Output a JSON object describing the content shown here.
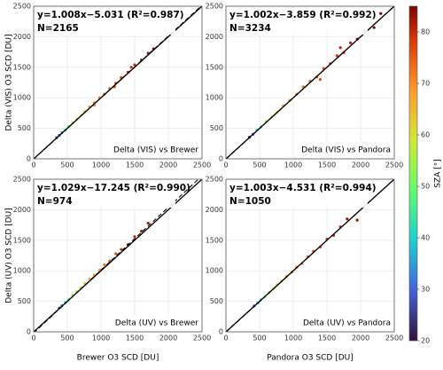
{
  "chart_data": [
    {
      "type": "scatter",
      "annotation": "y=1.008x−5.031 (R²=0.987)",
      "count_label": "N=2165",
      "panel_label": "Delta (VIS) vs Brewer",
      "ylabel": "Delta (VIS) O3 SCD [DU]",
      "fit": {
        "slope": 1.008,
        "intercept": -5.031
      },
      "x": [
        340,
        380,
        420,
        470,
        520,
        580,
        640,
        700,
        760,
        830,
        900,
        980,
        1050,
        1130,
        1220,
        1300,
        1400,
        1500,
        1600,
        1700,
        1780,
        1200,
        900,
        1450
      ],
      "values": [
        345,
        385,
        430,
        470,
        530,
        590,
        650,
        710,
        770,
        850,
        920,
        1000,
        1060,
        1150,
        1240,
        1330,
        1420,
        1540,
        1620,
        1730,
        1800,
        1180,
        880,
        1500
      ],
      "c": [
        24,
        30,
        36,
        42,
        48,
        54,
        58,
        62,
        65,
        68,
        70,
        72,
        74,
        75,
        77,
        78,
        79,
        80,
        81,
        82,
        83,
        76,
        71,
        80
      ],
      "xlim": [
        0,
        2500
      ],
      "ylim": [
        0,
        2500
      ],
      "xticks": [
        0,
        500,
        1000,
        1500,
        2000,
        2500
      ],
      "yticks": [
        0,
        500,
        1000,
        1500,
        2000,
        2500
      ],
      "grid": true
    },
    {
      "type": "scatter",
      "annotation": "y=1.002x−3.859 (R²=0.992)",
      "count_label": "N=3234",
      "panel_label": "Delta (VIS) vs Pandora",
      "fit": {
        "slope": 1.002,
        "intercept": -3.859
      },
      "x": [
        350,
        400,
        460,
        520,
        600,
        680,
        760,
        850,
        950,
        1050,
        1150,
        1250,
        1350,
        1450,
        1550,
        1650,
        1750,
        1850,
        1950,
        2050,
        2200,
        2300,
        1400,
        1700
      ],
      "values": [
        355,
        400,
        470,
        520,
        610,
        690,
        760,
        870,
        960,
        1060,
        1180,
        1270,
        1340,
        1480,
        1560,
        1690,
        1740,
        1900,
        1960,
        2100,
        2150,
        2380,
        1300,
        1820
      ],
      "c": [
        22,
        30,
        38,
        45,
        52,
        58,
        62,
        66,
        69,
        71,
        73,
        75,
        76,
        77,
        78,
        79,
        80,
        81,
        82,
        83,
        84,
        85,
        77,
        80
      ],
      "xlim": [
        0,
        2500
      ],
      "ylim": [
        0,
        2500
      ],
      "xticks": [
        0,
        500,
        1000,
        1500,
        2000,
        2500
      ],
      "yticks": [
        0,
        500,
        1000,
        1500,
        2000,
        2500
      ],
      "grid": true
    },
    {
      "type": "scatter",
      "annotation": "y=1.029x−17.245 (R²=0.990)",
      "count_label": "N=974",
      "panel_label": "Delta (UV) vs Brewer",
      "ylabel": "Delta (UV) O3 SCD [DU]",
      "xlabel": "Brewer O3 SCD [DU]",
      "fit": {
        "slope": 1.029,
        "intercept": -17.245
      },
      "x": [
        380,
        420,
        470,
        520,
        580,
        640,
        700,
        760,
        830,
        900,
        980,
        1050,
        1130,
        1220,
        1300,
        1400,
        1500,
        1600,
        1700
      ],
      "values": [
        390,
        430,
        480,
        530,
        600,
        660,
        720,
        790,
        860,
        930,
        1010,
        1100,
        1160,
        1280,
        1350,
        1430,
        1560,
        1650,
        1780
      ],
      "c": [
        28,
        34,
        40,
        46,
        52,
        57,
        61,
        64,
        67,
        69,
        71,
        73,
        75,
        77,
        78,
        79,
        80,
        81,
        82
      ],
      "xlim": [
        0,
        2500
      ],
      "ylim": [
        0,
        2500
      ],
      "xticks": [
        0,
        500,
        1000,
        1500,
        2000,
        2500
      ],
      "yticks": [
        0,
        500,
        1000,
        1500,
        2000,
        2500
      ],
      "grid": true
    },
    {
      "type": "scatter",
      "annotation": "y=1.003x−4.531 (R²=0.994)",
      "count_label": "N=1050",
      "panel_label": "Delta (UV) vs Pandora",
      "xlabel": "Pandora O3 SCD [DU]",
      "fit": {
        "slope": 1.003,
        "intercept": -4.531
      },
      "x": [
        420,
        470,
        520,
        580,
        640,
        700,
        760,
        830,
        900,
        980,
        1050,
        1130,
        1220,
        1300,
        1400,
        1500,
        1600,
        1700,
        1800,
        1950
      ],
      "values": [
        425,
        470,
        525,
        580,
        645,
        700,
        770,
        830,
        910,
        980,
        1060,
        1120,
        1230,
        1320,
        1390,
        1520,
        1580,
        1720,
        1850,
        1830
      ],
      "c": [
        30,
        36,
        42,
        48,
        54,
        58,
        62,
        65,
        68,
        70,
        72,
        74,
        76,
        77,
        78,
        79,
        80,
        81,
        82,
        83
      ],
      "xlim": [
        0,
        2500
      ],
      "ylim": [
        0,
        2500
      ],
      "xticks": [
        0,
        500,
        1000,
        1500,
        2000,
        2500
      ],
      "yticks": [
        0,
        500,
        1000,
        1500,
        2000,
        2500
      ],
      "grid": true
    }
  ],
  "colorbar": {
    "label": "SZA [°]",
    "lim": [
      20,
      85
    ],
    "ticks": [
      20,
      30,
      40,
      50,
      60,
      70,
      80
    ]
  }
}
